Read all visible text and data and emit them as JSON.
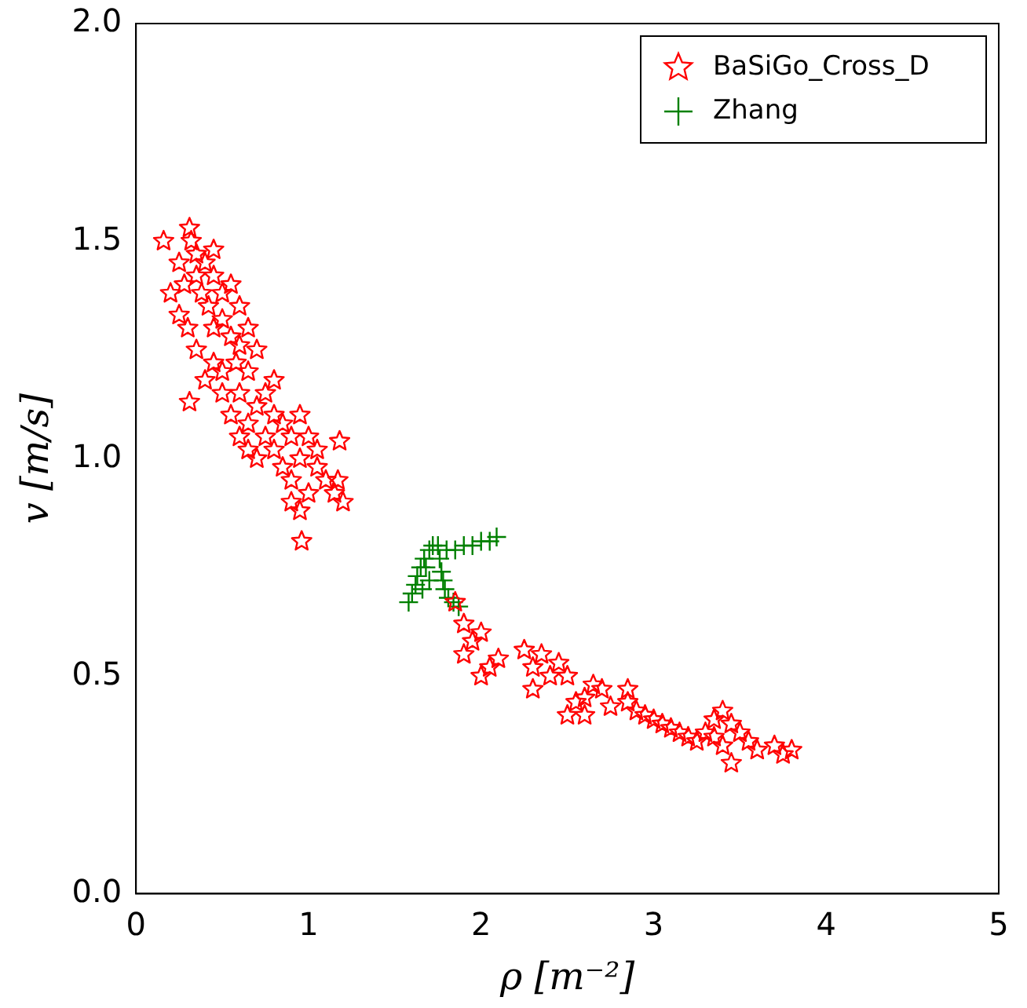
{
  "chart_data": {
    "type": "scatter",
    "xlabel": "ρ [m⁻²]",
    "ylabel": "v [m/s]",
    "xlim": [
      0,
      5
    ],
    "xticks": [
      0,
      1,
      2,
      3,
      4,
      5
    ],
    "ylim": [
      0.0,
      2.0
    ],
    "yticks": [
      {
        "value": 0,
        "label": "0.0"
      },
      0.5,
      {
        "value": 1,
        "label": "1.0"
      },
      1.5,
      {
        "value": 2,
        "label": "2.0"
      }
    ],
    "grid": false,
    "legend": "top right",
    "series": [
      {
        "name": "BaSiGo_Cross_D",
        "color": "#ff0000",
        "marker": "star",
        "x": [
          0.16,
          0.25,
          0.31,
          0.32,
          0.35,
          0.28,
          0.2,
          0.25,
          0.35,
          0.4,
          0.45,
          0.38,
          0.42,
          0.3,
          0.35,
          0.45,
          0.5,
          0.55,
          0.5,
          0.55,
          0.6,
          0.65,
          0.58,
          0.5,
          0.45,
          0.31,
          0.4,
          0.6,
          0.65,
          0.7,
          0.7,
          0.55,
          0.6,
          0.65,
          0.75,
          0.8,
          0.75,
          0.85,
          0.8,
          0.7,
          0.9,
          0.95,
          0.85,
          0.9,
          0.95,
          1.0,
          1.05,
          1.0,
          0.95,
          1.1,
          1.15,
          1.2,
          0.9,
          0.96,
          1.05,
          0.65,
          0.8,
          0.5,
          0.45,
          0.6,
          1.18,
          1.17,
          1.85,
          1.9,
          1.95,
          2.0,
          1.9,
          2.05,
          2.0,
          2.1,
          2.25,
          2.3,
          2.35,
          2.4,
          2.45,
          2.3,
          2.5,
          2.55,
          2.6,
          2.65,
          2.7,
          2.5,
          2.6,
          2.75,
          2.85,
          2.9,
          2.95,
          3.0,
          3.05,
          3.1,
          3.15,
          3.2,
          3.25,
          3.3,
          3.35,
          3.4,
          3.45,
          3.5,
          3.55,
          3.6,
          3.7,
          3.75,
          3.8,
          3.4,
          3.35,
          2.85,
          3.45
        ],
        "values": [
          1.5,
          1.45,
          1.53,
          1.5,
          1.47,
          1.4,
          1.38,
          1.33,
          1.42,
          1.45,
          1.48,
          1.38,
          1.35,
          1.3,
          1.25,
          1.3,
          1.38,
          1.4,
          1.32,
          1.28,
          1.35,
          1.3,
          1.22,
          1.2,
          1.22,
          1.13,
          1.18,
          1.15,
          1.2,
          1.25,
          1.12,
          1.1,
          1.05,
          1.08,
          1.15,
          1.1,
          1.05,
          1.08,
          1.02,
          1.0,
          1.05,
          1.1,
          0.98,
          0.95,
          1.0,
          1.05,
          0.98,
          0.92,
          0.88,
          0.95,
          0.92,
          0.9,
          0.9,
          0.81,
          1.02,
          1.02,
          1.18,
          1.15,
          1.42,
          1.26,
          1.04,
          0.95,
          0.67,
          0.62,
          0.58,
          0.6,
          0.55,
          0.52,
          0.5,
          0.54,
          0.56,
          0.52,
          0.55,
          0.5,
          0.53,
          0.47,
          0.5,
          0.44,
          0.45,
          0.48,
          0.47,
          0.41,
          0.41,
          0.43,
          0.44,
          0.42,
          0.41,
          0.4,
          0.39,
          0.38,
          0.37,
          0.36,
          0.35,
          0.37,
          0.4,
          0.42,
          0.39,
          0.37,
          0.35,
          0.33,
          0.34,
          0.32,
          0.33,
          0.34,
          0.36,
          0.47,
          0.3
        ]
      },
      {
        "name": "Zhang",
        "color": "#008000",
        "marker": "cross",
        "x": [
          1.58,
          1.6,
          1.62,
          1.63,
          1.65,
          1.67,
          1.7,
          1.72,
          1.75,
          1.8,
          1.85,
          1.9,
          1.95,
          2.0,
          2.05,
          2.09,
          1.76,
          1.77,
          1.78,
          1.79,
          1.81,
          1.84,
          1.87,
          1.68,
          1.7,
          1.66
        ],
        "values": [
          0.67,
          0.69,
          0.71,
          0.73,
          0.75,
          0.77,
          0.79,
          0.8,
          0.8,
          0.79,
          0.79,
          0.8,
          0.8,
          0.81,
          0.81,
          0.82,
          0.77,
          0.74,
          0.72,
          0.7,
          0.68,
          0.67,
          0.66,
          0.75,
          0.72,
          0.7
        ]
      }
    ]
  }
}
